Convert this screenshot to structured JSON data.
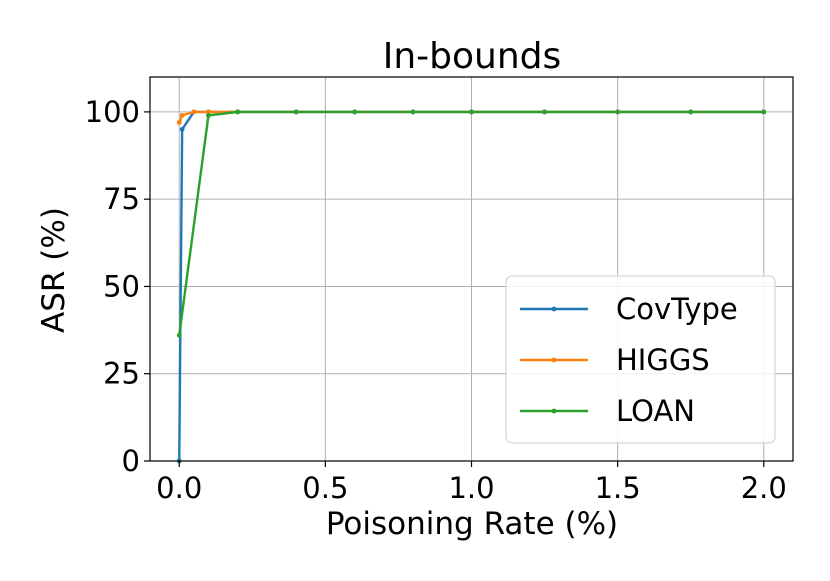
{
  "chart_data": {
    "type": "line",
    "title": "In-bounds",
    "xlabel": "Poisoning Rate (%)",
    "ylabel": "ASR (%)",
    "xlim": [
      -0.1,
      2.1
    ],
    "ylim": [
      0,
      110
    ],
    "xticks": [
      0.0,
      0.5,
      1.0,
      1.5,
      2.0
    ],
    "xtick_labels": [
      "0.0",
      "0.5",
      "1.0",
      "1.5",
      "2.0"
    ],
    "yticks": [
      0,
      25,
      50,
      75,
      100
    ],
    "ytick_labels": [
      "0",
      "25",
      "50",
      "75",
      "100"
    ],
    "grid": true,
    "legend_position": "lower-right",
    "series": [
      {
        "name": "CovType",
        "color": "#1f77b4",
        "x": [
          0.0,
          0.01,
          0.05,
          0.1,
          0.2,
          0.4,
          0.6,
          0.8,
          1.0,
          1.25,
          1.5,
          1.75,
          2.0
        ],
        "y": [
          0,
          95,
          100,
          100,
          100,
          100,
          100,
          100,
          100,
          100,
          100,
          100,
          100
        ]
      },
      {
        "name": "HIGGS",
        "color": "#ff7f0e",
        "x": [
          0.0,
          0.01,
          0.05,
          0.1,
          0.2,
          0.4,
          0.6,
          0.8,
          1.0,
          1.25,
          1.5,
          1.75,
          2.0
        ],
        "y": [
          97,
          99,
          100,
          100,
          100,
          100,
          100,
          100,
          100,
          100,
          100,
          100,
          100
        ]
      },
      {
        "name": "LOAN",
        "color": "#2ca02c",
        "x": [
          0.0,
          0.1,
          0.2,
          0.4,
          0.6,
          0.8,
          1.0,
          1.25,
          1.5,
          1.75,
          2.0
        ],
        "y": [
          36,
          99,
          100,
          100,
          100,
          100,
          100,
          100,
          100,
          100,
          100
        ]
      }
    ]
  }
}
